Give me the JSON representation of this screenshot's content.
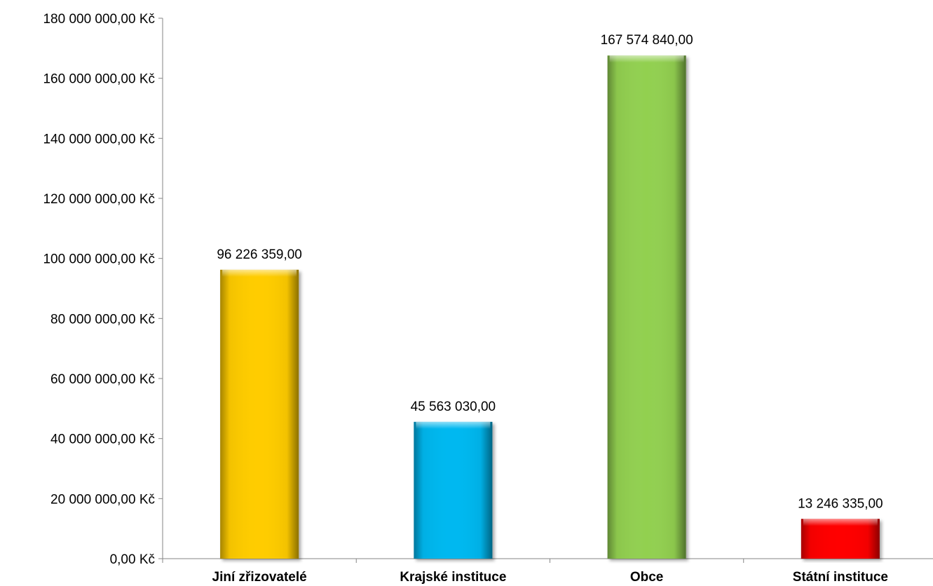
{
  "chart_data": {
    "type": "bar",
    "categories": [
      "Jiní zřizovatelé",
      "Krajské instituce",
      "Obce",
      "Státní instituce"
    ],
    "values": [
      96226359.0,
      45563030.0,
      167574840.0,
      13246335.0
    ],
    "data_labels": [
      "96 226 359,00",
      "45 563 030,00",
      "167 574 840,00",
      "13 246 335,00"
    ],
    "colors": [
      "#ffcc00",
      "#00b8f0",
      "#92d050",
      "#ff0000"
    ],
    "ylim": [
      0,
      180000000
    ],
    "ytick_values": [
      0,
      20000000,
      40000000,
      60000000,
      80000000,
      100000000,
      120000000,
      140000000,
      160000000,
      180000000
    ],
    "yticks": [
      "0,00 Kč",
      "20 000 000,00 Kč",
      "40 000 000,00 Kč",
      "60 000 000,00 Kč",
      "80 000 000,00 Kč",
      "100 000 000,00 Kč",
      "120 000 000,00 Kč",
      "140 000 000,00 Kč",
      "160 000 000,00 Kč",
      "180 000 000,00 Kč"
    ],
    "title": "",
    "xlabel": "",
    "ylabel": "",
    "grid": false,
    "legend": "none"
  }
}
